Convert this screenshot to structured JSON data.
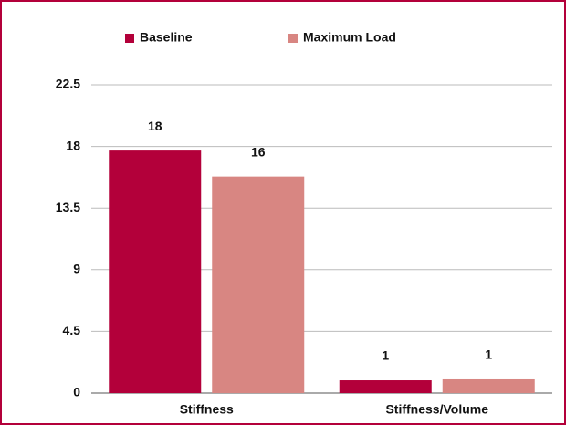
{
  "chart_data": {
    "type": "bar",
    "categories": [
      "Stiffness",
      "Stiffness/Volume"
    ],
    "series": [
      {
        "name": "Baseline",
        "color": "#b3003a",
        "values": [
          17.7,
          0.93
        ],
        "value_labels": [
          "18",
          "1"
        ]
      },
      {
        "name": "Maximum Load",
        "color": "#d88682",
        "values": [
          15.8,
          1.0
        ],
        "value_labels": [
          "16",
          "1"
        ]
      }
    ],
    "ylim": [
      0,
      22.5
    ],
    "yticks": [
      0,
      4.5,
      9,
      13.5,
      18,
      22.5
    ],
    "grid": true,
    "legend": "top"
  }
}
